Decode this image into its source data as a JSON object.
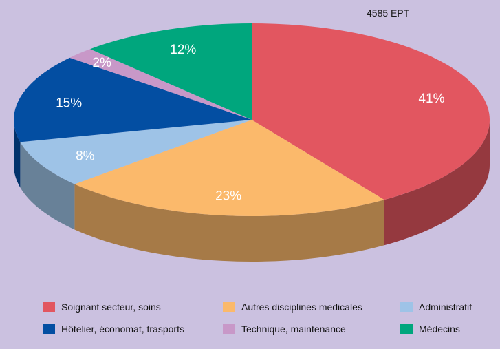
{
  "chart_data": {
    "type": "pie",
    "title": "",
    "total_label": "4585 EPT",
    "style": "3d",
    "legend_placement": "bottom",
    "slices": [
      {
        "name": "Soignant secteur, soins",
        "value": 41,
        "label": "41%",
        "color": "#e25660"
      },
      {
        "name": "Autres disciplines medicales",
        "value": 23,
        "label": "23%",
        "color": "#fbb96b"
      },
      {
        "name": "Administratif",
        "value": 8,
        "label": "8%",
        "color": "#9ec3e7"
      },
      {
        "name": "Hôtelier, économat, trasports",
        "value": 15,
        "label": "15%",
        "color": "#034ea2"
      },
      {
        "name": "Technique, maintenance",
        "value": 2,
        "label": "2%",
        "color": "#c898c8"
      },
      {
        "name": "Médecins",
        "value": 12,
        "label": "12%",
        "color": "#00a67d"
      }
    ]
  }
}
